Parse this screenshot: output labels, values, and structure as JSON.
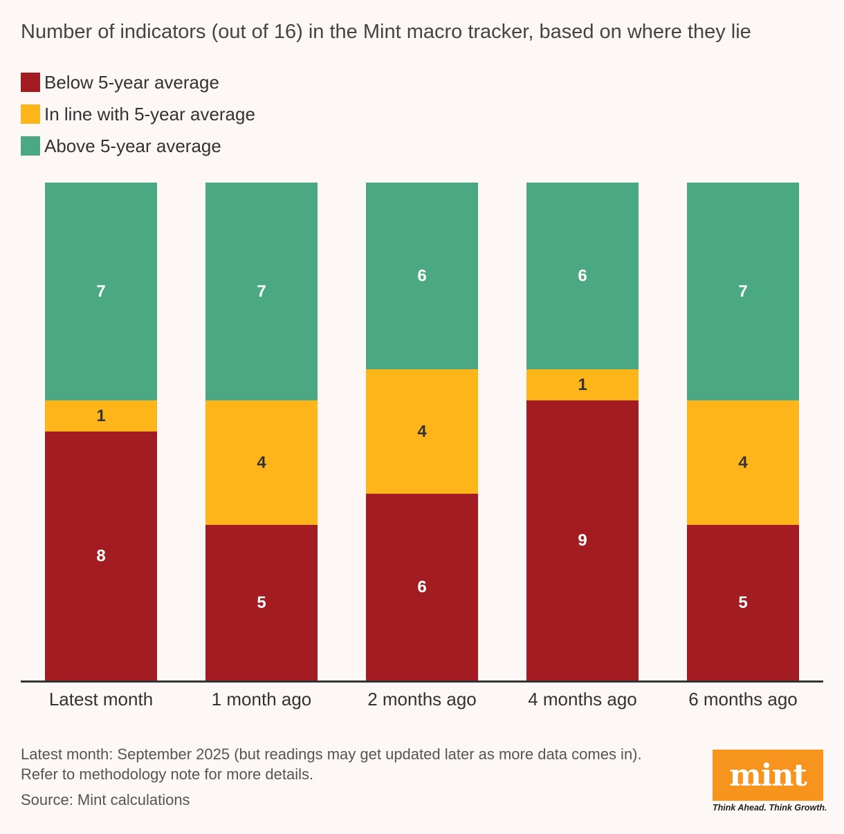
{
  "chart_data": {
    "type": "bar",
    "stacked": true,
    "title": "Number of indicators (out of 16) in the Mint macro tracker, based on where they lie",
    "categories": [
      "Latest month",
      "1 month ago",
      "2 months ago",
      "4 months ago",
      "6 months ago"
    ],
    "series": [
      {
        "name": "Below 5-year average",
        "color": "#a31c22",
        "label_color": "#ffffff",
        "values": [
          8,
          5,
          6,
          9,
          5
        ]
      },
      {
        "name": "In line with 5-year average",
        "color": "#fdb519",
        "label_color": "#333333",
        "values": [
          1,
          4,
          4,
          1,
          4
        ]
      },
      {
        "name": "Above 5-year average",
        "color": "#4aa983",
        "label_color": "#ffffff",
        "values": [
          7,
          7,
          6,
          6,
          7
        ]
      }
    ],
    "ylim": [
      0,
      16
    ],
    "grid": false,
    "legend_position": "top-left",
    "data_labels": true
  },
  "footnote": {
    "line1": "Latest month: September 2025 (but readings may get updated later as more data comes in).",
    "line2": "Refer to methodology note for more details."
  },
  "source": "Source: Mint calculations",
  "logo": {
    "word": "mint",
    "tagline": "Think Ahead. Think Growth."
  }
}
